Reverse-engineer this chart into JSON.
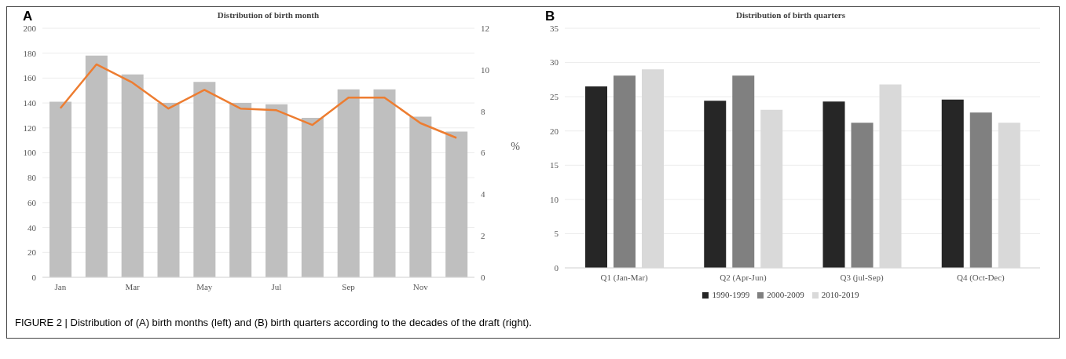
{
  "chart_data": [
    {
      "type": "bar",
      "title": "Distribution of birth month",
      "y2label": "%",
      "annotations": [
        "A"
      ],
      "categories": [
        "Jan",
        null,
        "Mar",
        null,
        "May",
        null,
        "Jul",
        null,
        "Sep",
        null,
        "Nov",
        null
      ],
      "series": [
        {
          "color": "#bfbfbf",
          "values": [
            141,
            178,
            163,
            140,
            157,
            140,
            139,
            128,
            151,
            151,
            129,
            117
          ]
        },
        {
          "type": "line",
          "axis": "y2",
          "color": "#ed7d31",
          "values": [
            8.15,
            10.26,
            9.38,
            8.13,
            9.03,
            8.13,
            8.05,
            7.34,
            8.66,
            8.66,
            7.43,
            6.72
          ]
        }
      ],
      "ylim": [
        0,
        200
      ],
      "yticks": [
        0,
        20,
        40,
        60,
        80,
        100,
        120,
        140,
        160,
        180,
        200
      ],
      "y2lim": [
        0,
        12
      ],
      "y2ticks": [
        0,
        2,
        4,
        6,
        8,
        10,
        12
      ],
      "grid": "y",
      "legend": false,
      "marker": "none"
    },
    {
      "type": "bar",
      "title": "Distribution of birth quarters",
      "annotations": [
        "B",
        "FIGURE 2 | Distribution of (A) birth months (left) and (B) birth quarters according to the decades of the draft (right)."
      ],
      "categories": [
        "Q1 (Jan-Mar)",
        "Q2 (Apr-Jun)",
        "Q3 (jul-Sep)",
        "Q4 (Oct-Dec)"
      ],
      "series": [
        {
          "name": "1990-1999",
          "color": "#262626",
          "values": [
            26.5,
            24.4,
            24.3,
            24.6
          ]
        },
        {
          "name": "2000-2009",
          "color": "#808080",
          "values": [
            28.1,
            28.1,
            21.2,
            22.7
          ]
        },
        {
          "name": "2010-2019",
          "color": "#d9d9d9",
          "values": [
            29.0,
            23.1,
            26.8,
            21.2
          ]
        }
      ],
      "ylim": [
        0,
        35
      ],
      "yticks": [
        0,
        5,
        10,
        15,
        20,
        25,
        30,
        35
      ],
      "grid": "y",
      "legend": "bottom"
    }
  ]
}
